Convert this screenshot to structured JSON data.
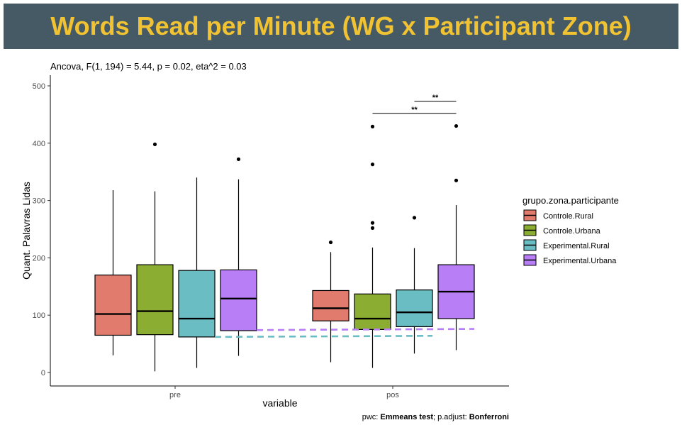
{
  "page_title": "Words Read per Minute (WG x Participant Zone)",
  "chart_data": {
    "type": "boxplot",
    "subtitle": "Ancova, F(1, 194) = 5.44, p = 0.02, eta^2 = 0.03",
    "xlabel": "variable",
    "ylabel": "Quant. Palavras Lidas",
    "caption_prefix": "pwc: ",
    "caption_test": "Emmeans test",
    "caption_mid": "; p.adjust: ",
    "caption_adjust": "Bonferroni",
    "categories": [
      "pre",
      "pos"
    ],
    "ylim": [
      -20,
      520
    ],
    "yticks": [
      0,
      100,
      200,
      300,
      400,
      500
    ],
    "legend_title": "grupo.zona.participante",
    "legend_position": "right",
    "grid": false,
    "series": [
      {
        "name": "Controle.Rural",
        "color": "#e07b6e",
        "boxes": [
          {
            "min": 30,
            "q1": 65,
            "median": 102,
            "q3": 170,
            "max": 318,
            "outliers": []
          },
          {
            "min": 18,
            "q1": 90,
            "median": 112,
            "q3": 143,
            "max": 210,
            "outliers": [
              227
            ]
          }
        ]
      },
      {
        "name": "Controle.Urbana",
        "color": "#8bad31",
        "boxes": [
          {
            "min": 2,
            "q1": 66,
            "median": 107,
            "q3": 188,
            "max": 316,
            "outliers": [
              398
            ]
          },
          {
            "min": 8,
            "q1": 75,
            "median": 94,
            "q3": 137,
            "max": 218,
            "outliers": [
              252,
              261,
              363,
              429
            ]
          }
        ]
      },
      {
        "name": "Experimental.Rural",
        "color": "#6bbdc4",
        "boxes": [
          {
            "min": 8,
            "q1": 62,
            "median": 94,
            "q3": 178,
            "max": 340,
            "outliers": []
          },
          {
            "min": 33,
            "q1": 80,
            "median": 105,
            "q3": 144,
            "max": 217,
            "outliers": [
              270
            ]
          }
        ]
      },
      {
        "name": "Experimental.Urbana",
        "color": "#b77ef5",
        "boxes": [
          {
            "min": 29,
            "q1": 73,
            "median": 129,
            "q3": 179,
            "max": 337,
            "outliers": [
              372
            ]
          },
          {
            "min": 39,
            "q1": 94,
            "median": 141,
            "q3": 188,
            "max": 292,
            "outliers": [
              335,
              430
            ]
          }
        ]
      }
    ],
    "trend_lines": [
      {
        "series": "Experimental.Rural",
        "color": "#6bbdc4",
        "from": {
          "x": "pre",
          "y": 62
        },
        "to": {
          "x": "pos",
          "y": 64
        }
      },
      {
        "series": "Experimental.Urbana",
        "color": "#b77ef5",
        "from": {
          "x": "pre",
          "y": 74
        },
        "to": {
          "x": "pos",
          "y": 76
        }
      }
    ],
    "annotations": [
      {
        "category": "pos",
        "from_series": "Controle.Urbana",
        "to_series": "Experimental.Urbana",
        "label": "**",
        "y": 452
      },
      {
        "category": "pos",
        "from_series": "Experimental.Rural",
        "to_series": "Experimental.Urbana",
        "label": "**",
        "y": 473
      }
    ]
  }
}
